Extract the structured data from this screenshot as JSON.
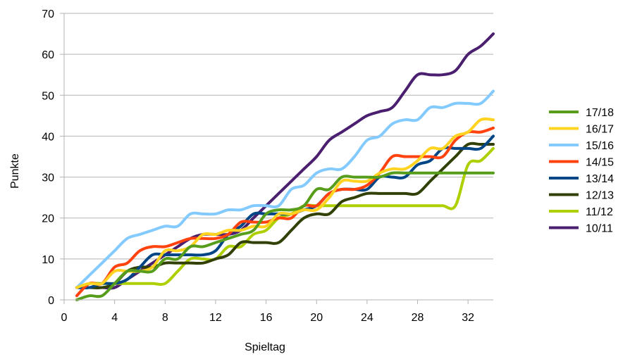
{
  "chart_data": {
    "type": "line",
    "xlabel": "Spieltag",
    "ylabel": "Punkte",
    "xlim": [
      0,
      34
    ],
    "ylim": [
      0,
      70
    ],
    "xticks": [
      0,
      4,
      8,
      12,
      16,
      20,
      24,
      28,
      32
    ],
    "yticks": [
      0,
      10,
      20,
      30,
      40,
      50,
      60,
      70
    ],
    "grid": "horizontal",
    "legend_position": "right",
    "x": [
      1,
      2,
      3,
      4,
      5,
      6,
      7,
      8,
      9,
      10,
      11,
      12,
      13,
      14,
      15,
      16,
      17,
      18,
      19,
      20,
      21,
      22,
      23,
      24,
      25,
      26,
      27,
      28,
      29,
      30,
      31,
      32,
      33,
      34
    ],
    "series": [
      {
        "name": "17/18",
        "color": "#579d1c",
        "values": [
          0,
          1,
          1,
          4,
          7,
          7,
          7,
          10,
          10,
          13,
          13,
          14,
          15,
          16,
          17,
          21,
          22,
          22,
          23,
          27,
          27,
          30,
          30,
          30,
          30,
          31,
          31,
          31,
          31,
          31,
          31,
          31,
          31,
          31
        ]
      },
      {
        "name": "16/17",
        "color": "#ffd320",
        "values": [
          3,
          4,
          4,
          7,
          7,
          7,
          8,
          12,
          12,
          13,
          16,
          16,
          17,
          17,
          18,
          18,
          21,
          21,
          22,
          22,
          25,
          29,
          29,
          29,
          31,
          32,
          32,
          34,
          37,
          37,
          40,
          41,
          44,
          44
        ]
      },
      {
        "name": "15/16",
        "color": "#83caff",
        "values": [
          3,
          6,
          9,
          12,
          15,
          16,
          17,
          18,
          18,
          21,
          21,
          21,
          22,
          22,
          23,
          23,
          23,
          27,
          28,
          31,
          32,
          32,
          35,
          39,
          40,
          43,
          44,
          44,
          47,
          47,
          48,
          48,
          48,
          51
        ]
      },
      {
        "name": "14/15",
        "color": "#ff420e",
        "values": [
          1,
          4,
          4,
          8,
          9,
          12,
          13,
          13,
          14,
          15,
          15,
          15,
          16,
          19,
          19,
          19,
          20,
          20,
          23,
          23,
          26,
          27,
          27,
          28,
          31,
          35,
          35,
          35,
          35,
          35,
          39,
          41,
          41,
          42
        ]
      },
      {
        "name": "13/14",
        "color": "#004586",
        "values": [
          3,
          3,
          4,
          4,
          5,
          8,
          11,
          11,
          11,
          11,
          11,
          12,
          16,
          18,
          21,
          21,
          21,
          21,
          22,
          23,
          26,
          27,
          27,
          27,
          30,
          30,
          30,
          33,
          34,
          37,
          37,
          37,
          37,
          40
        ]
      },
      {
        "name": "12/13",
        "color": "#314004",
        "values": [
          3,
          3,
          3,
          4,
          7,
          8,
          8,
          9,
          9,
          9,
          9,
          10,
          11,
          14,
          14,
          14,
          14,
          17,
          20,
          21,
          21,
          24,
          25,
          26,
          26,
          26,
          26,
          26,
          29,
          32,
          35,
          38,
          38,
          38
        ]
      },
      {
        "name": "11/12",
        "color": "#aecf00",
        "values": [
          3,
          4,
          4,
          4,
          4,
          4,
          4,
          4,
          7,
          10,
          10,
          10,
          13,
          13,
          16,
          17,
          20,
          21,
          23,
          23,
          23,
          23,
          23,
          23,
          23,
          23,
          23,
          23,
          23,
          23,
          23,
          33,
          34,
          37
        ]
      },
      {
        "name": "10/11",
        "color": "#4b1f6f",
        "values": [
          3,
          3,
          3,
          3,
          5,
          7,
          9,
          11,
          13,
          15,
          16,
          16,
          16,
          17,
          20,
          23,
          26,
          29,
          32,
          35,
          39,
          41,
          43,
          45,
          46,
          47,
          51,
          55,
          55,
          55,
          56,
          60,
          62,
          65
        ]
      }
    ]
  }
}
